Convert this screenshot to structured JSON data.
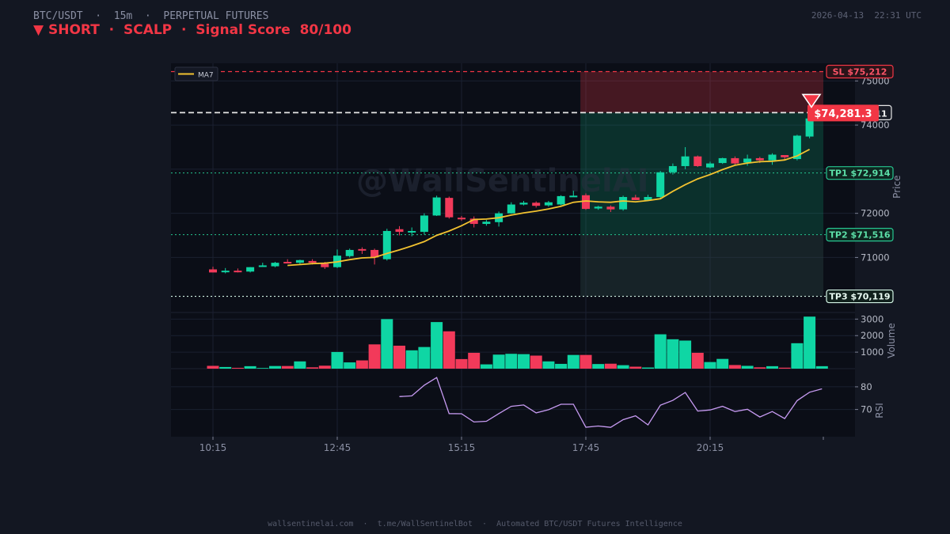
{
  "header": {
    "pair": "BTC/USDT",
    "sep1": "·",
    "timeframe": "15m",
    "sep2": "·",
    "market": "PERPETUAL FUTURES",
    "timestamp": "2026-04-13  22:31 UTC",
    "signal_line": "▼ SHORT  ·  SCALP  ·  Signal Score  80/100"
  },
  "colors": {
    "bg": "#131722",
    "panel": "#0b0e17",
    "up": "#0fd6a4",
    "down": "#f23a5a",
    "ma": "#f2c230",
    "rsi": "#c79bf2",
    "sl": "#f23645",
    "tp": "#26c690",
    "tp3": "#d4f5e6"
  },
  "watermark": "@WallSentinelAI",
  "footer": {
    "site": "wallsentinelai.com",
    "bot": "t.me/WallSentinelBot",
    "tagline": "Automated BTC/USDT Futures Intelligence"
  },
  "chart_data": {
    "type": "candlestick",
    "legend": {
      "entries": [
        "MA7"
      ],
      "placement": "top-left"
    },
    "price_axis": {
      "label": "Price",
      "ylim": [
        69950,
        75400
      ],
      "ticks": [
        71000,
        72000,
        74000,
        75000
      ]
    },
    "volume_axis": {
      "label": "Volume",
      "ylim": [
        0,
        3400
      ],
      "ticks": [
        1000,
        2000,
        3000
      ]
    },
    "rsi_axis": {
      "label": "RSI",
      "ylim": [
        58,
        88
      ],
      "ticks": [
        70,
        80
      ]
    },
    "x_ticks": [
      "10:15",
      "12:45",
      "15:15",
      "17:45",
      "20:15"
    ],
    "x_tick_index": [
      0,
      10,
      20,
      30,
      40
    ],
    "candles": [
      {
        "o": 70730,
        "h": 70790,
        "l": 70660,
        "c": 70660,
        "v": 170
      },
      {
        "o": 70680,
        "h": 70760,
        "l": 70640,
        "c": 70700,
        "v": 100
      },
      {
        "o": 70700,
        "h": 70750,
        "l": 70660,
        "c": 70680,
        "v": 50
      },
      {
        "o": 70680,
        "h": 70780,
        "l": 70660,
        "c": 70780,
        "v": 150
      },
      {
        "o": 70810,
        "h": 70880,
        "l": 70800,
        "c": 70820,
        "v": 40
      },
      {
        "o": 70800,
        "h": 70900,
        "l": 70780,
        "c": 70880,
        "v": 160
      },
      {
        "o": 70900,
        "h": 70960,
        "l": 70870,
        "c": 70890,
        "v": 160
      },
      {
        "o": 70880,
        "h": 70950,
        "l": 70830,
        "c": 70940,
        "v": 440
      },
      {
        "o": 70920,
        "h": 70960,
        "l": 70840,
        "c": 70880,
        "v": 80
      },
      {
        "o": 70860,
        "h": 70900,
        "l": 70740,
        "c": 70780,
        "v": 180
      },
      {
        "o": 70780,
        "h": 71180,
        "l": 70760,
        "c": 71040,
        "v": 1010
      },
      {
        "o": 71030,
        "h": 71200,
        "l": 71000,
        "c": 71170,
        "v": 380
      },
      {
        "o": 71190,
        "h": 71230,
        "l": 71080,
        "c": 71180,
        "v": 500
      },
      {
        "o": 71170,
        "h": 71200,
        "l": 70840,
        "c": 71000,
        "v": 1470
      },
      {
        "o": 70960,
        "h": 71650,
        "l": 70930,
        "c": 71600,
        "v": 3000
      },
      {
        "o": 71640,
        "h": 71710,
        "l": 71500,
        "c": 71580,
        "v": 1390
      },
      {
        "o": 71590,
        "h": 71680,
        "l": 71480,
        "c": 71600,
        "v": 1110
      },
      {
        "o": 71580,
        "h": 72000,
        "l": 71520,
        "c": 71950,
        "v": 1310
      },
      {
        "o": 71950,
        "h": 72400,
        "l": 71940,
        "c": 72360,
        "v": 2820
      },
      {
        "o": 72350,
        "h": 72380,
        "l": 71880,
        "c": 71910,
        "v": 2260
      },
      {
        "o": 71900,
        "h": 71940,
        "l": 71830,
        "c": 71870,
        "v": 580
      },
      {
        "o": 71880,
        "h": 71930,
        "l": 71680,
        "c": 71760,
        "v": 960
      },
      {
        "o": 71760,
        "h": 71850,
        "l": 71720,
        "c": 71810,
        "v": 260
      },
      {
        "o": 71800,
        "h": 72040,
        "l": 71700,
        "c": 72000,
        "v": 850
      },
      {
        "o": 72000,
        "h": 72250,
        "l": 71990,
        "c": 72200,
        "v": 900
      },
      {
        "o": 72200,
        "h": 72280,
        "l": 72180,
        "c": 72240,
        "v": 880
      },
      {
        "o": 72240,
        "h": 72270,
        "l": 72130,
        "c": 72170,
        "v": 790
      },
      {
        "o": 72180,
        "h": 72280,
        "l": 72150,
        "c": 72250,
        "v": 440
      },
      {
        "o": 72200,
        "h": 72410,
        "l": 72180,
        "c": 72390,
        "v": 290
      },
      {
        "o": 72390,
        "h": 72510,
        "l": 72370,
        "c": 72400,
        "v": 830
      },
      {
        "o": 72410,
        "h": 72450,
        "l": 72080,
        "c": 72100,
        "v": 830
      },
      {
        "o": 72110,
        "h": 72170,
        "l": 72080,
        "c": 72150,
        "v": 280
      },
      {
        "o": 72150,
        "h": 72180,
        "l": 72030,
        "c": 72090,
        "v": 300
      },
      {
        "o": 72090,
        "h": 72400,
        "l": 72060,
        "c": 72370,
        "v": 210
      },
      {
        "o": 72360,
        "h": 72420,
        "l": 72300,
        "c": 72300,
        "v": 120
      },
      {
        "o": 72300,
        "h": 72420,
        "l": 72280,
        "c": 72370,
        "v": 70
      },
      {
        "o": 72370,
        "h": 72960,
        "l": 72340,
        "c": 72930,
        "v": 2080
      },
      {
        "o": 72930,
        "h": 73130,
        "l": 72880,
        "c": 73070,
        "v": 1780
      },
      {
        "o": 73070,
        "h": 73500,
        "l": 73000,
        "c": 73290,
        "v": 1700
      },
      {
        "o": 73290,
        "h": 73310,
        "l": 73050,
        "c": 73070,
        "v": 960
      },
      {
        "o": 73040,
        "h": 73170,
        "l": 73020,
        "c": 73130,
        "v": 400
      },
      {
        "o": 73140,
        "h": 73260,
        "l": 73120,
        "c": 73250,
        "v": 590
      },
      {
        "o": 73250,
        "h": 73290,
        "l": 73100,
        "c": 73130,
        "v": 220
      },
      {
        "o": 73150,
        "h": 73330,
        "l": 73080,
        "c": 73240,
        "v": 170
      },
      {
        "o": 73250,
        "h": 73280,
        "l": 73140,
        "c": 73200,
        "v": 80
      },
      {
        "o": 73200,
        "h": 73360,
        "l": 73100,
        "c": 73330,
        "v": 150
      },
      {
        "o": 73320,
        "h": 73310,
        "l": 73210,
        "c": 73270,
        "v": 60
      },
      {
        "o": 73230,
        "h": 73780,
        "l": 73200,
        "c": 73760,
        "v": 1540
      },
      {
        "o": 73740,
        "h": 74430,
        "l": 73700,
        "c": 74150,
        "v": 3150
      },
      {
        "o": null,
        "h": null,
        "l": null,
        "c": null,
        "v": 150
      }
    ],
    "ma7": [
      null,
      null,
      null,
      null,
      null,
      null,
      70820,
      70840,
      70860,
      70870,
      70900,
      70950,
      70990,
      71000,
      71090,
      71170,
      71260,
      71360,
      71500,
      71600,
      71720,
      71860,
      71870,
      71900,
      71960,
      72010,
      72050,
      72100,
      72160,
      72250,
      72280,
      72260,
      72250,
      72280,
      72260,
      72290,
      72330,
      72500,
      72650,
      72780,
      72880,
      72990,
      73090,
      73140,
      73170,
      73180,
      73210,
      73300,
      73450
    ],
    "rsi": [
      null,
      null,
      null,
      null,
      null,
      null,
      null,
      null,
      null,
      null,
      null,
      null,
      null,
      null,
      null,
      75.7,
      76,
      80.7,
      84.1,
      68.2,
      68.1,
      64.5,
      64.8,
      68.2,
      71.4,
      72,
      68.5,
      69.9,
      72.3,
      72.3,
      62.2,
      62.7,
      62.1,
      65.5,
      67.2,
      63.2,
      71.9,
      74,
      77.5,
      69.3,
      69.8,
      71.4,
      69.1,
      70.1,
      66.7,
      69.1,
      66,
      73.9,
      77.6,
      79.1
    ],
    "levels": {
      "entry": {
        "value": 74281.3,
        "label": "$74,281.3",
        "edge_label": "11"
      },
      "sl": {
        "value": 75212,
        "label": "SL  $75,212"
      },
      "tp1": {
        "value": 72914,
        "label": "TP1  $72,914"
      },
      "tp2": {
        "value": 71516,
        "label": "TP2  $71,516"
      },
      "tp3": {
        "value": 70119,
        "label": "TP3  $70,119"
      }
    },
    "zone_start_index": 30,
    "signal": "short",
    "grid": true
  }
}
